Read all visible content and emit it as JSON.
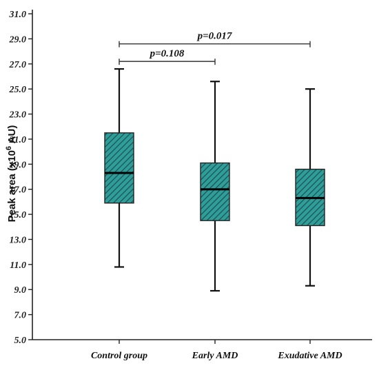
{
  "chart_data": {
    "type": "box",
    "ylabel": "Peak area (x10",
    "ylabel_sup": "6",
    "ylabel_unit": " AU)",
    "ylim": [
      5.0,
      31.0
    ],
    "yticks": [
      "5.0",
      "7.0",
      "9.0",
      "11.0",
      "13.0",
      "15.0",
      "17.0",
      "19.0",
      "21.0",
      "23.0",
      "25.0",
      "27.0",
      "29.0",
      "31.0"
    ],
    "categories": [
      "Control group",
      "Early AMD",
      "Exudative AMD"
    ],
    "boxes": [
      {
        "min": 10.8,
        "q1": 15.9,
        "median": 18.3,
        "q3": 21.5,
        "max": 26.6
      },
      {
        "min": 8.9,
        "q1": 14.5,
        "median": 17.0,
        "q3": 19.1,
        "max": 25.6
      },
      {
        "min": 9.3,
        "q1": 14.1,
        "median": 16.3,
        "q3": 18.6,
        "max": 25.0
      }
    ],
    "comparisons": [
      {
        "from": 0,
        "to": 1,
        "label": "p=0.108",
        "y": 27.2
      },
      {
        "from": 0,
        "to": 2,
        "label": "p=0.017",
        "y": 28.6
      }
    ],
    "colors": {
      "box_fill": "#2f9e9a",
      "hatch": "#1d4e4c",
      "stroke": "#111111"
    },
    "grid": false
  }
}
